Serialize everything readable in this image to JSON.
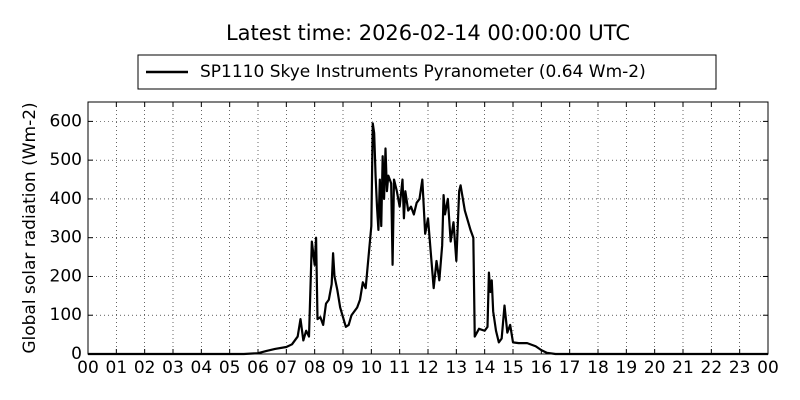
{
  "chart_data": {
    "type": "line",
    "title": "Latest time: 2026-02-14 00:00:00 UTC",
    "ylabel": "Global solar radiation (Wm-2)",
    "legend": "top",
    "grid": true,
    "x": [
      0,
      5.5,
      6,
      6.3,
      6.6,
      7,
      7.2,
      7.4,
      7.5,
      7.6,
      7.7,
      7.8,
      7.9,
      8.0,
      8.05,
      8.1,
      8.2,
      8.3,
      8.4,
      8.5,
      8.6,
      8.65,
      8.7,
      8.8,
      8.9,
      9.0,
      9.1,
      9.2,
      9.3,
      9.5,
      9.6,
      9.7,
      9.8,
      9.9,
      10.0,
      10.05,
      10.1,
      10.15,
      10.2,
      10.25,
      10.3,
      10.35,
      10.4,
      10.45,
      10.5,
      10.55,
      10.6,
      10.7,
      10.75,
      10.8,
      10.9,
      11.0,
      11.1,
      11.15,
      11.2,
      11.3,
      11.4,
      11.5,
      11.6,
      11.7,
      11.8,
      11.9,
      12.0,
      12.1,
      12.2,
      12.3,
      12.4,
      12.5,
      12.55,
      12.6,
      12.7,
      12.8,
      12.9,
      13.0,
      13.1,
      13.15,
      13.3,
      13.5,
      13.6,
      13.65,
      13.8,
      14.0,
      14.1,
      14.15,
      14.2,
      14.25,
      14.3,
      14.4,
      14.5,
      14.6,
      14.7,
      14.8,
      14.9,
      15.0,
      15.2,
      15.5,
      15.8,
      16.0,
      16.2,
      16.5,
      24
    ],
    "series": [
      {
        "name": "SP1110 Skye Instruments Pyranometer (0.64 Wm-2)",
        "color": "#000000",
        "values": [
          0,
          0,
          2,
          8,
          13,
          18,
          25,
          45,
          90,
          35,
          60,
          45,
          290,
          230,
          300,
          90,
          95,
          75,
          130,
          140,
          180,
          260,
          200,
          165,
          120,
          95,
          70,
          75,
          100,
          120,
          140,
          185,
          170,
          250,
          330,
          595,
          570,
          460,
          380,
          320,
          450,
          330,
          510,
          400,
          530,
          420,
          460,
          440,
          230,
          450,
          420,
          380,
          450,
          350,
          420,
          370,
          380,
          360,
          390,
          400,
          450,
          310,
          350,
          260,
          170,
          240,
          190,
          280,
          410,
          360,
          400,
          290,
          340,
          240,
          420,
          435,
          370,
          320,
          300,
          45,
          65,
          60,
          70,
          210,
          160,
          190,
          110,
          60,
          30,
          40,
          125,
          55,
          75,
          30,
          28,
          28,
          20,
          10,
          3,
          0,
          0
        ]
      }
    ],
    "xlim": [
      0,
      24
    ],
    "xticks": [
      {
        "value": 0,
        "label": "00"
      },
      {
        "value": 1,
        "label": "01"
      },
      {
        "value": 2,
        "label": "02"
      },
      {
        "value": 3,
        "label": "03"
      },
      {
        "value": 4,
        "label": "04"
      },
      {
        "value": 5,
        "label": "05"
      },
      {
        "value": 6,
        "label": "06"
      },
      {
        "value": 7,
        "label": "07"
      },
      {
        "value": 8,
        "label": "08"
      },
      {
        "value": 9,
        "label": "09"
      },
      {
        "value": 10,
        "label": "10"
      },
      {
        "value": 11,
        "label": "11"
      },
      {
        "value": 12,
        "label": "12"
      },
      {
        "value": 13,
        "label": "13"
      },
      {
        "value": 14,
        "label": "14"
      },
      {
        "value": 15,
        "label": "15"
      },
      {
        "value": 16,
        "label": "16"
      },
      {
        "value": 17,
        "label": "17"
      },
      {
        "value": 18,
        "label": "18"
      },
      {
        "value": 19,
        "label": "19"
      },
      {
        "value": 20,
        "label": "20"
      },
      {
        "value": 21,
        "label": "21"
      },
      {
        "value": 22,
        "label": "22"
      },
      {
        "value": 23,
        "label": "23"
      },
      {
        "value": 24,
        "label": "00"
      }
    ],
    "ylim": [
      0,
      650
    ],
    "yticks": [
      0,
      100,
      200,
      300,
      400,
      500,
      600
    ]
  }
}
